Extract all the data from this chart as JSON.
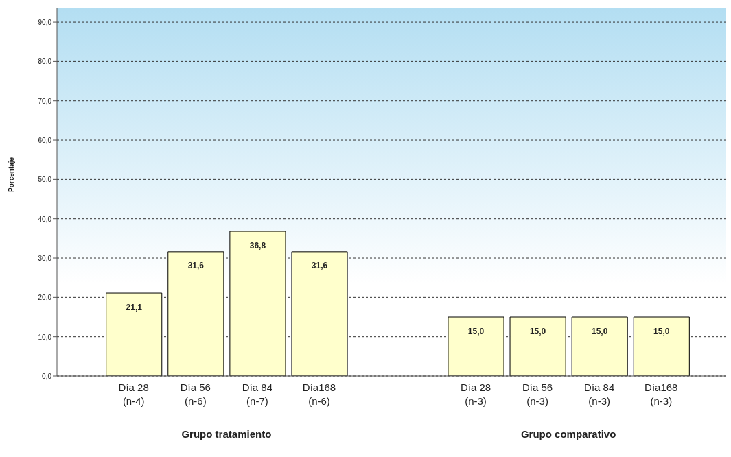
{
  "chart_data": {
    "type": "bar",
    "ylabel": "Porcentaje",
    "categories": [
      "Día 28\n(n-4)",
      "Día 56\n(n-6)",
      "Día 84\n(n-7)",
      "Día168\n(n-6)",
      "Día 28\n(n-3)",
      "Día 56\n(n-3)",
      "Día 84\n(n-3)",
      "Día168\n(n-3)"
    ],
    "values": [
      21.1,
      31.6,
      36.8,
      31.6,
      15.0,
      15.0,
      15.0,
      15.0
    ],
    "color": "#ffffcc",
    "value_labels": [
      "21,1",
      "31,6",
      "36,8",
      "31,6",
      "15,0",
      "15,0",
      "15,0",
      "15,0"
    ],
    "ylim": [
      0,
      93.5
    ],
    "yticks": [
      {
        "value": 0,
        "label": "0,0"
      },
      {
        "value": 10,
        "label": "10,0"
      },
      {
        "value": 20,
        "label": "20,0"
      },
      {
        "value": 30,
        "label": "30,0"
      },
      {
        "value": 40,
        "label": "40,0"
      },
      {
        "value": 50,
        "label": "50,0"
      },
      {
        "value": 60,
        "label": "60,0"
      },
      {
        "value": 70,
        "label": "70,0"
      },
      {
        "value": 80,
        "label": "80,0"
      },
      {
        "value": 90,
        "label": "90,0"
      }
    ],
    "grid": "y",
    "annotations": [
      "Grupo tratamiento",
      "Grupo comparativo"
    ]
  }
}
